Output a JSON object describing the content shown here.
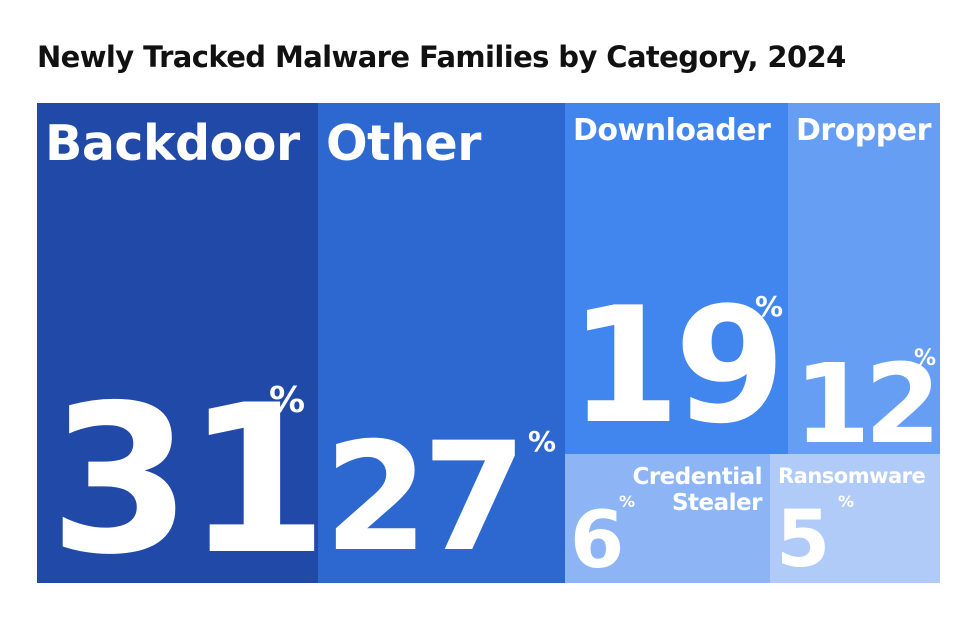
{
  "chart_data": {
    "type": "treemap",
    "title": "Newly Tracked Malware Families by Category, 2024",
    "unit": "%",
    "categories": [
      "Backdoor",
      "Other",
      "Downloader",
      "Dropper",
      "Credential Stealer",
      "Ransomware"
    ],
    "values": [
      31,
      27,
      19,
      12,
      6,
      5
    ],
    "colors": [
      "#2149a8",
      "#2d67d0",
      "#4185ef",
      "#669ef3",
      "#8db5f6",
      "#b0cbf8"
    ]
  }
}
